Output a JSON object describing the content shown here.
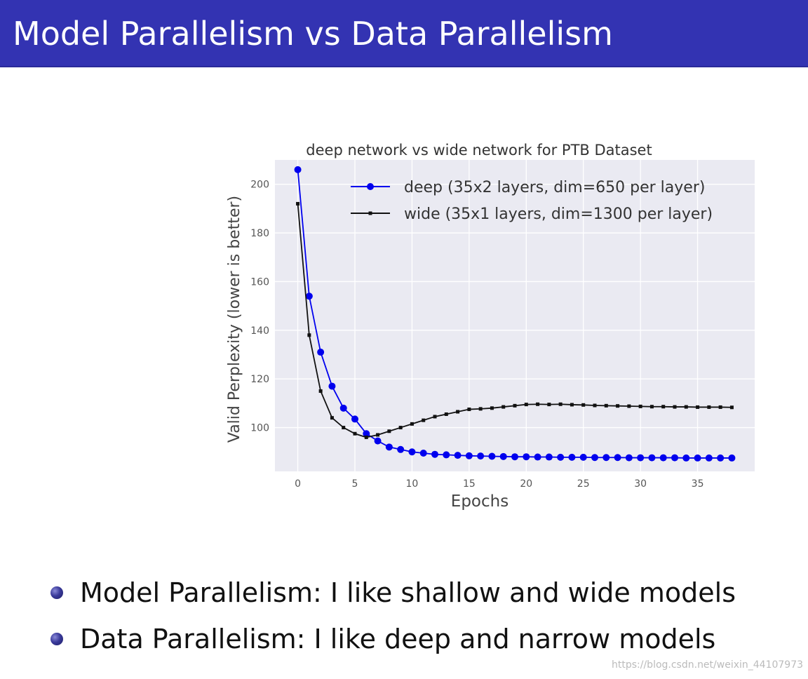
{
  "slide": {
    "title": "Model Parallelism vs Data Parallelism",
    "bullets": [
      "Model Parallelism: I like shallow and wide models",
      "Data Parallelism: I like deep and narrow models"
    ],
    "watermark": "https://blog.csdn.net/weixin_44107973",
    "colors": {
      "title_bar": "#3333b2",
      "title_text": "#ffffff",
      "bullet": "#2a2a88"
    }
  },
  "chart_data": {
    "type": "line",
    "title": "deep network vs wide network for PTB Dataset",
    "xlabel": "Epochs",
    "ylabel": "Valid Perplexity (lower is better)",
    "xlim": [
      -2,
      40
    ],
    "ylim": [
      82,
      210
    ],
    "xticks": [
      "0",
      "5",
      "10",
      "15",
      "20",
      "25",
      "30",
      "35"
    ],
    "yticks": [
      "100",
      "120",
      "140",
      "160",
      "180",
      "200"
    ],
    "grid": true,
    "legend_position": "top-right",
    "x": [
      0,
      1,
      2,
      3,
      4,
      5,
      6,
      7,
      8,
      9,
      10,
      11,
      12,
      13,
      14,
      15,
      16,
      17,
      18,
      19,
      20,
      21,
      22,
      23,
      24,
      25,
      26,
      27,
      28,
      29,
      30,
      31,
      32,
      33,
      34,
      35,
      36,
      37,
      38
    ],
    "series": [
      {
        "name": "deep (35x2 layers, dim=650 per layer)",
        "color": "#0000ee",
        "marker": "circle",
        "values": [
          206,
          154,
          131,
          117,
          108,
          103.5,
          97.5,
          94.5,
          92,
          91,
          90,
          89.5,
          89,
          88.8,
          88.6,
          88.4,
          88.3,
          88.2,
          88.1,
          88,
          88,
          87.9,
          87.9,
          87.8,
          87.8,
          87.8,
          87.7,
          87.7,
          87.7,
          87.6,
          87.6,
          87.6,
          87.6,
          87.6,
          87.5,
          87.5,
          87.5,
          87.5,
          87.5
        ]
      },
      {
        "name": "wide (35x1 layers, dim=1300 per layer)",
        "color": "#111111",
        "marker": "square",
        "values": [
          192,
          138,
          115,
          104,
          100,
          97.5,
          96,
          97,
          98.5,
          100,
          101.5,
          103,
          104.5,
          105.5,
          106.5,
          107.5,
          107.7,
          108,
          108.5,
          109,
          109.5,
          109.6,
          109.5,
          109.6,
          109.4,
          109.3,
          109.1,
          109,
          108.9,
          108.8,
          108.7,
          108.6,
          108.6,
          108.5,
          108.5,
          108.4,
          108.4,
          108.4,
          108.3
        ]
      }
    ]
  }
}
